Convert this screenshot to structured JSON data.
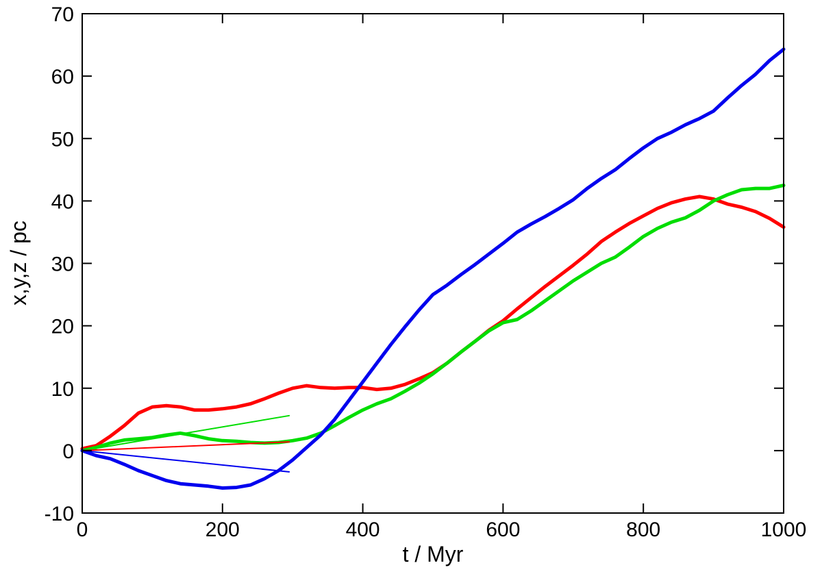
{
  "chart_data": {
    "type": "line",
    "xlabel": "t / Myr",
    "ylabel": "x,y,z / pc",
    "xlim": [
      0,
      1000
    ],
    "ylim": [
      -10,
      70
    ],
    "xticks": [
      0,
      200,
      400,
      600,
      800,
      1000
    ],
    "yticks": [
      -10,
      0,
      10,
      20,
      30,
      40,
      50,
      60,
      70
    ],
    "xtick_labels": [
      "0",
      "200",
      "400",
      "600",
      "800",
      "1000"
    ],
    "ytick_labels": [
      "-10",
      "0",
      "10",
      "20",
      "30",
      "40",
      "50",
      "60",
      "70"
    ],
    "grid": false,
    "series": [
      {
        "color": "#ff0000",
        "style": "thick",
        "x": [
          0,
          20,
          40,
          60,
          80,
          100,
          120,
          140,
          160,
          180,
          200,
          220,
          240,
          260,
          280,
          300,
          320,
          340,
          360,
          380,
          400,
          420,
          440,
          460,
          480,
          500,
          520,
          540,
          560,
          580,
          600,
          620,
          640,
          660,
          680,
          700,
          720,
          740,
          760,
          780,
          800,
          820,
          840,
          860,
          880,
          900,
          920,
          940,
          960,
          980,
          1000
        ],
        "y": [
          0.3,
          0.8,
          2.3,
          4.0,
          6.0,
          7.0,
          7.2,
          7.0,
          6.5,
          6.5,
          6.7,
          7.0,
          7.5,
          8.3,
          9.2,
          10.0,
          10.4,
          10.1,
          10.0,
          10.1,
          10.1,
          9.8,
          10.0,
          10.6,
          11.5,
          12.5,
          14.0,
          15.8,
          17.5,
          19.3,
          20.8,
          22.7,
          24.5,
          26.3,
          28.0,
          29.7,
          31.5,
          33.5,
          35.0,
          36.4,
          37.6,
          38.8,
          39.7,
          40.3,
          40.7,
          40.3,
          39.5,
          39.0,
          38.3,
          37.2,
          35.8
        ]
      },
      {
        "color": "#00dd00",
        "style": "thick",
        "x": [
          0,
          20,
          40,
          60,
          80,
          100,
          120,
          140,
          160,
          180,
          200,
          220,
          240,
          260,
          280,
          300,
          320,
          340,
          360,
          380,
          400,
          420,
          440,
          460,
          480,
          500,
          520,
          540,
          560,
          580,
          600,
          620,
          640,
          660,
          680,
          700,
          720,
          740,
          760,
          780,
          800,
          820,
          840,
          860,
          880,
          900,
          920,
          940,
          960,
          980,
          1000
        ],
        "y": [
          0.0,
          0.5,
          1.2,
          1.7,
          1.9,
          2.1,
          2.5,
          2.8,
          2.4,
          1.9,
          1.6,
          1.5,
          1.3,
          1.2,
          1.3,
          1.6,
          2.0,
          2.8,
          4.0,
          5.3,
          6.5,
          7.5,
          8.3,
          9.5,
          10.8,
          12.3,
          14.0,
          15.8,
          17.5,
          19.2,
          20.5,
          21.0,
          22.4,
          24.0,
          25.6,
          27.2,
          28.6,
          30.0,
          31.0,
          32.6,
          34.3,
          35.6,
          36.6,
          37.3,
          38.5,
          40.0,
          41.0,
          41.8,
          42.0,
          42.0,
          42.5
        ]
      },
      {
        "color": "#0000ee",
        "style": "thick",
        "x": [
          0,
          20,
          40,
          60,
          80,
          100,
          120,
          140,
          160,
          180,
          200,
          220,
          240,
          260,
          280,
          300,
          320,
          340,
          360,
          380,
          400,
          420,
          440,
          460,
          480,
          500,
          520,
          540,
          560,
          580,
          600,
          620,
          640,
          660,
          680,
          700,
          720,
          740,
          760,
          780,
          800,
          820,
          840,
          860,
          880,
          900,
          920,
          940,
          960,
          980,
          1000
        ],
        "y": [
          0.0,
          -0.8,
          -1.3,
          -2.2,
          -3.2,
          -4.0,
          -4.8,
          -5.3,
          -5.5,
          -5.7,
          -6.0,
          -5.9,
          -5.5,
          -4.5,
          -3.2,
          -1.5,
          0.5,
          2.5,
          5.0,
          8.0,
          11.0,
          14.0,
          17.0,
          19.8,
          22.5,
          25.0,
          26.5,
          28.2,
          29.8,
          31.5,
          33.2,
          35.0,
          36.3,
          37.5,
          38.8,
          40.2,
          42.0,
          43.6,
          45.0,
          46.8,
          48.5,
          50.0,
          51.0,
          52.2,
          53.2,
          54.4,
          56.5,
          58.5,
          60.3,
          62.5,
          64.3
        ]
      },
      {
        "color": "#00dd00",
        "style": "thin",
        "x": [
          0,
          295
        ],
        "y": [
          0.0,
          5.6
        ]
      },
      {
        "color": "#ff0000",
        "style": "thin",
        "x": [
          0,
          295
        ],
        "y": [
          0.0,
          1.4
        ]
      },
      {
        "color": "#0000ee",
        "style": "thin",
        "x": [
          0,
          295
        ],
        "y": [
          0.0,
          -3.4
        ]
      }
    ]
  }
}
